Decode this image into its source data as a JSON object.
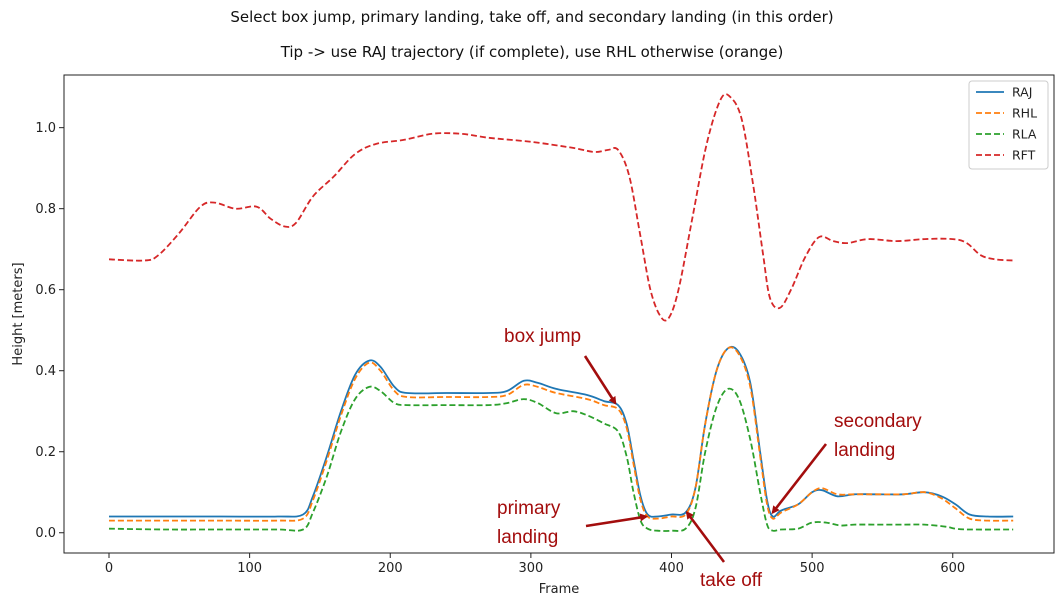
{
  "chart_data": {
    "type": "line",
    "title": "Select box jump, primary landing, take off, and secondary landing (in this order)",
    "subtitle": "Tip -> use RAJ trajectory (if complete), use RHL otherwise (orange)",
    "xlabel": "Frame",
    "ylabel": "Height [meters]",
    "xlim": [
      -32,
      672
    ],
    "ylim": [
      -0.05,
      1.13
    ],
    "xticks": [
      0,
      100,
      200,
      300,
      400,
      500,
      600
    ],
    "yticks": [
      0.0,
      0.2,
      0.4,
      0.6,
      0.8,
      1.0
    ],
    "xtick_labels": [
      "0",
      "100",
      "200",
      "300",
      "400",
      "500",
      "600"
    ],
    "ytick_labels": [
      "0.0",
      "0.2",
      "0.4",
      "0.6",
      "0.8",
      "1.0"
    ],
    "grid": false,
    "legend_position": "top-right",
    "series": [
      {
        "name": "RAJ",
        "color": "#1f77b4",
        "dash": "solid",
        "points": [
          [
            0,
            0.04
          ],
          [
            40,
            0.04
          ],
          [
            80,
            0.04
          ],
          [
            120,
            0.04
          ],
          [
            138,
            0.045
          ],
          [
            145,
            0.09
          ],
          [
            155,
            0.19
          ],
          [
            165,
            0.3
          ],
          [
            175,
            0.39
          ],
          [
            185,
            0.425
          ],
          [
            193,
            0.41
          ],
          [
            203,
            0.36
          ],
          [
            212,
            0.345
          ],
          [
            240,
            0.345
          ],
          [
            270,
            0.345
          ],
          [
            283,
            0.35
          ],
          [
            295,
            0.375
          ],
          [
            305,
            0.37
          ],
          [
            318,
            0.355
          ],
          [
            340,
            0.34
          ],
          [
            352,
            0.325
          ],
          [
            362,
            0.315
          ],
          [
            368,
            0.27
          ],
          [
            373,
            0.18
          ],
          [
            378,
            0.09
          ],
          [
            383,
            0.045
          ],
          [
            390,
            0.04
          ],
          [
            400,
            0.045
          ],
          [
            410,
            0.05
          ],
          [
            417,
            0.11
          ],
          [
            424,
            0.27
          ],
          [
            432,
            0.4
          ],
          [
            440,
            0.455
          ],
          [
            448,
            0.445
          ],
          [
            456,
            0.37
          ],
          [
            463,
            0.2
          ],
          [
            468,
            0.08
          ],
          [
            472,
            0.04
          ],
          [
            478,
            0.055
          ],
          [
            490,
            0.07
          ],
          [
            500,
            0.1
          ],
          [
            507,
            0.105
          ],
          [
            518,
            0.09
          ],
          [
            530,
            0.095
          ],
          [
            545,
            0.095
          ],
          [
            565,
            0.095
          ],
          [
            580,
            0.1
          ],
          [
            592,
            0.09
          ],
          [
            602,
            0.07
          ],
          [
            612,
            0.045
          ],
          [
            625,
            0.04
          ],
          [
            643,
            0.04
          ]
        ]
      },
      {
        "name": "RHL",
        "color": "#ff7f0e",
        "dash": "dashed",
        "points": [
          [
            0,
            0.03
          ],
          [
            40,
            0.03
          ],
          [
            80,
            0.03
          ],
          [
            120,
            0.03
          ],
          [
            138,
            0.035
          ],
          [
            145,
            0.08
          ],
          [
            155,
            0.18
          ],
          [
            165,
            0.29
          ],
          [
            175,
            0.38
          ],
          [
            185,
            0.42
          ],
          [
            193,
            0.4
          ],
          [
            203,
            0.35
          ],
          [
            212,
            0.335
          ],
          [
            240,
            0.335
          ],
          [
            270,
            0.335
          ],
          [
            283,
            0.34
          ],
          [
            295,
            0.365
          ],
          [
            305,
            0.36
          ],
          [
            318,
            0.345
          ],
          [
            340,
            0.33
          ],
          [
            352,
            0.315
          ],
          [
            362,
            0.305
          ],
          [
            368,
            0.26
          ],
          [
            373,
            0.17
          ],
          [
            378,
            0.08
          ],
          [
            383,
            0.04
          ],
          [
            390,
            0.035
          ],
          [
            400,
            0.04
          ],
          [
            410,
            0.045
          ],
          [
            417,
            0.11
          ],
          [
            424,
            0.27
          ],
          [
            432,
            0.4
          ],
          [
            440,
            0.455
          ],
          [
            448,
            0.44
          ],
          [
            456,
            0.36
          ],
          [
            463,
            0.19
          ],
          [
            468,
            0.07
          ],
          [
            472,
            0.035
          ],
          [
            478,
            0.05
          ],
          [
            490,
            0.07
          ],
          [
            500,
            0.1
          ],
          [
            507,
            0.11
          ],
          [
            518,
            0.095
          ],
          [
            530,
            0.095
          ],
          [
            545,
            0.095
          ],
          [
            565,
            0.095
          ],
          [
            580,
            0.1
          ],
          [
            592,
            0.085
          ],
          [
            602,
            0.06
          ],
          [
            612,
            0.035
          ],
          [
            625,
            0.03
          ],
          [
            643,
            0.03
          ]
        ]
      },
      {
        "name": "RLA",
        "color": "#2ca02c",
        "dash": "dashed",
        "points": [
          [
            0,
            0.01
          ],
          [
            40,
            0.008
          ],
          [
            80,
            0.008
          ],
          [
            120,
            0.008
          ],
          [
            138,
            0.008
          ],
          [
            145,
            0.05
          ],
          [
            155,
            0.14
          ],
          [
            165,
            0.25
          ],
          [
            175,
            0.33
          ],
          [
            185,
            0.36
          ],
          [
            193,
            0.35
          ],
          [
            203,
            0.32
          ],
          [
            212,
            0.315
          ],
          [
            240,
            0.315
          ],
          [
            270,
            0.315
          ],
          [
            283,
            0.32
          ],
          [
            295,
            0.33
          ],
          [
            305,
            0.32
          ],
          [
            318,
            0.295
          ],
          [
            330,
            0.3
          ],
          [
            340,
            0.29
          ],
          [
            352,
            0.27
          ],
          [
            362,
            0.25
          ],
          [
            368,
            0.19
          ],
          [
            373,
            0.1
          ],
          [
            378,
            0.03
          ],
          [
            383,
            0.01
          ],
          [
            390,
            0.005
          ],
          [
            400,
            0.005
          ],
          [
            410,
            0.01
          ],
          [
            417,
            0.06
          ],
          [
            424,
            0.2
          ],
          [
            432,
            0.31
          ],
          [
            440,
            0.355
          ],
          [
            448,
            0.33
          ],
          [
            456,
            0.23
          ],
          [
            463,
            0.1
          ],
          [
            468,
            0.02
          ],
          [
            472,
            0.005
          ],
          [
            478,
            0.008
          ],
          [
            490,
            0.01
          ],
          [
            500,
            0.025
          ],
          [
            510,
            0.025
          ],
          [
            520,
            0.018
          ],
          [
            530,
            0.02
          ],
          [
            545,
            0.02
          ],
          [
            565,
            0.02
          ],
          [
            580,
            0.02
          ],
          [
            595,
            0.015
          ],
          [
            602,
            0.01
          ],
          [
            612,
            0.008
          ],
          [
            643,
            0.008
          ]
        ]
      },
      {
        "name": "RFT",
        "color": "#d62728",
        "dash": "dashed",
        "points": [
          [
            0,
            0.675
          ],
          [
            25,
            0.672
          ],
          [
            35,
            0.685
          ],
          [
            50,
            0.74
          ],
          [
            65,
            0.805
          ],
          [
            75,
            0.815
          ],
          [
            90,
            0.8
          ],
          [
            105,
            0.805
          ],
          [
            115,
            0.775
          ],
          [
            125,
            0.756
          ],
          [
            133,
            0.765
          ],
          [
            145,
            0.83
          ],
          [
            160,
            0.88
          ],
          [
            175,
            0.935
          ],
          [
            190,
            0.96
          ],
          [
            210,
            0.97
          ],
          [
            230,
            0.985
          ],
          [
            250,
            0.985
          ],
          [
            270,
            0.975
          ],
          [
            300,
            0.965
          ],
          [
            330,
            0.95
          ],
          [
            345,
            0.94
          ],
          [
            355,
            0.945
          ],
          [
            362,
            0.945
          ],
          [
            370,
            0.88
          ],
          [
            378,
            0.73
          ],
          [
            385,
            0.6
          ],
          [
            392,
            0.535
          ],
          [
            398,
            0.53
          ],
          [
            405,
            0.6
          ],
          [
            415,
            0.78
          ],
          [
            425,
            0.96
          ],
          [
            435,
            1.07
          ],
          [
            442,
            1.075
          ],
          [
            450,
            1.02
          ],
          [
            458,
            0.86
          ],
          [
            465,
            0.69
          ],
          [
            470,
            0.58
          ],
          [
            477,
            0.555
          ],
          [
            485,
            0.6
          ],
          [
            495,
            0.68
          ],
          [
            505,
            0.73
          ],
          [
            515,
            0.72
          ],
          [
            525,
            0.715
          ],
          [
            540,
            0.725
          ],
          [
            560,
            0.72
          ],
          [
            580,
            0.725
          ],
          [
            600,
            0.725
          ],
          [
            610,
            0.715
          ],
          [
            620,
            0.685
          ],
          [
            630,
            0.675
          ],
          [
            643,
            0.672
          ]
        ]
      }
    ],
    "annotations": [
      {
        "text": "box jump",
        "target": [
          360,
          0.32
        ]
      },
      {
        "text": "primary landing",
        "lines": [
          "primary",
          "landing"
        ],
        "target": [
          382,
          0.04
        ]
      },
      {
        "text": "take off",
        "target": [
          411,
          0.05
        ]
      },
      {
        "text": "secondary landing",
        "lines": [
          "secondary",
          "landing"
        ],
        "target": [
          472,
          0.05
        ]
      }
    ],
    "annotation_color": "#a30d0d"
  }
}
